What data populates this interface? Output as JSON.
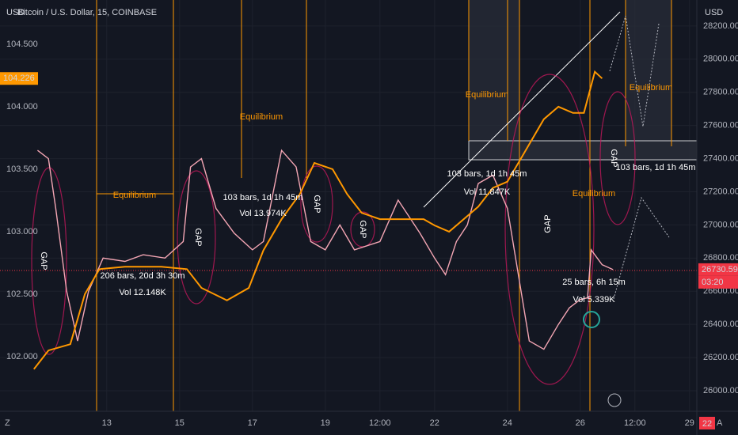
{
  "chart_data": {
    "type": "line",
    "title": "Bitcoin / U.S. Dollar, 15, COINBASE",
    "axis_unit": "USD",
    "countdown": "03:20",
    "alerts_count": "22",
    "corner_left": "Z",
    "corner_right": "A",
    "xlim": [
      10.07,
      29.2
    ],
    "xticks": [
      {
        "value": 13,
        "label": "13"
      },
      {
        "value": 15,
        "label": "15"
      },
      {
        "value": 17,
        "label": "17"
      },
      {
        "value": 19,
        "label": "19"
      },
      {
        "value": 20.5,
        "label": "12:00"
      },
      {
        "value": 22,
        "label": "22"
      },
      {
        "value": 24,
        "label": "24"
      },
      {
        "value": 26,
        "label": "26"
      },
      {
        "value": 27.5,
        "label": "12:00"
      },
      {
        "value": 29,
        "label": "29"
      }
    ],
    "ylim": [
      101.563,
      104.854
    ],
    "yticks": [
      {
        "value": 102,
        "label": "102.000"
      },
      {
        "value": 102.5,
        "label": "102.500"
      },
      {
        "value": 103,
        "label": "103.000"
      },
      {
        "value": 103.5,
        "label": "103.500"
      },
      {
        "value": 104,
        "label": "104.000"
      },
      {
        "value": 104.5,
        "label": "104.500"
      }
    ],
    "y2lim": [
      25876,
      28357
    ],
    "y2ticks": [
      {
        "value": 26000,
        "label": "26000.00"
      },
      {
        "value": 26200,
        "label": "26200.00"
      },
      {
        "value": 26400,
        "label": "26400.00"
      },
      {
        "value": 26600,
        "label": "26600.00"
      },
      {
        "value": 26800,
        "label": "26800.00"
      },
      {
        "value": 27000,
        "label": "27000.00"
      },
      {
        "value": 27200,
        "label": "27200.00"
      },
      {
        "value": 27400,
        "label": "27400.00"
      },
      {
        "value": 27600,
        "label": "27600.00"
      },
      {
        "value": 27800,
        "label": "27800.00"
      },
      {
        "value": 28000,
        "label": "28000.00"
      },
      {
        "value": 28200,
        "label": "28200.00"
      }
    ],
    "grid": true,
    "series": [
      {
        "color": "#f4a6b4",
        "axis": "y2",
        "tag_color": "#f23645",
        "x": [
          11.1,
          11.4,
          11.6,
          11.9,
          12.2,
          12.5,
          12.9,
          13.5,
          14.0,
          14.6,
          15.1,
          15.3,
          15.6,
          16.0,
          16.5,
          17.0,
          17.3,
          17.8,
          18.2,
          18.6,
          19.0,
          19.4,
          19.8,
          20.5,
          21.0,
          21.3,
          21.6,
          22.0,
          22.3,
          22.6,
          22.9,
          23.2,
          23.6,
          24.0,
          24.3,
          24.6,
          25.0,
          25.4,
          25.7,
          26.0,
          26.2,
          26.3,
          26.6,
          26.9
        ],
        "values": [
          27450,
          27400,
          27100,
          26600,
          26300,
          26600,
          26800,
          26780,
          26820,
          26800,
          26900,
          27350,
          27400,
          27100,
          26950,
          26850,
          26900,
          27450,
          27350,
          26900,
          26850,
          27000,
          26850,
          26900,
          27150,
          27050,
          26950,
          26800,
          26700,
          26900,
          27000,
          27250,
          27300,
          27100,
          26700,
          26300,
          26250,
          26400,
          26500,
          26550,
          26560,
          26850,
          26760,
          26730.59
        ]
      },
      {
        "color": "#ff9800",
        "axis": "y",
        "tag_color": "#ff9800",
        "x": [
          11.0,
          11.4,
          12.0,
          12.4,
          12.8,
          13.5,
          14.5,
          15.2,
          15.6,
          16.3,
          16.9,
          17.3,
          17.8,
          18.3,
          18.7,
          19.2,
          19.6,
          20.0,
          20.5,
          21.2,
          21.7,
          22.0,
          22.4,
          22.8,
          23.2,
          23.6,
          24.0,
          24.5,
          25.0,
          25.4,
          25.8,
          26.1,
          26.4,
          26.6
        ],
        "values": [
          101.9,
          102.05,
          102.1,
          102.5,
          102.7,
          102.72,
          102.72,
          102.7,
          102.55,
          102.45,
          102.55,
          102.85,
          103.1,
          103.3,
          103.55,
          103.5,
          103.3,
          103.15,
          103.1,
          103.1,
          103.1,
          103.05,
          103.0,
          103.1,
          103.2,
          103.35,
          103.4,
          103.65,
          103.9,
          104.0,
          103.95,
          103.95,
          104.28,
          104.226
        ]
      }
    ],
    "annotations": [
      "GAP",
      "GAP",
      "GAP",
      "GAP",
      "GAP",
      "GAP",
      "Equilibrium",
      "Equilibrium",
      "Equilibrium",
      "Equilibrium",
      "Equilibrium",
      "206 bars, 20d 3h 30m",
      "Vol 12.148K",
      "103 bars, 1d 1h 45m",
      "Vol 13.974K",
      "103 bars, 1d 1h 45m",
      "Vol 11.847K",
      "103 bars, 1d 1h 45m",
      "25 bars, 6h 15m",
      "Vol 5.339K"
    ]
  }
}
